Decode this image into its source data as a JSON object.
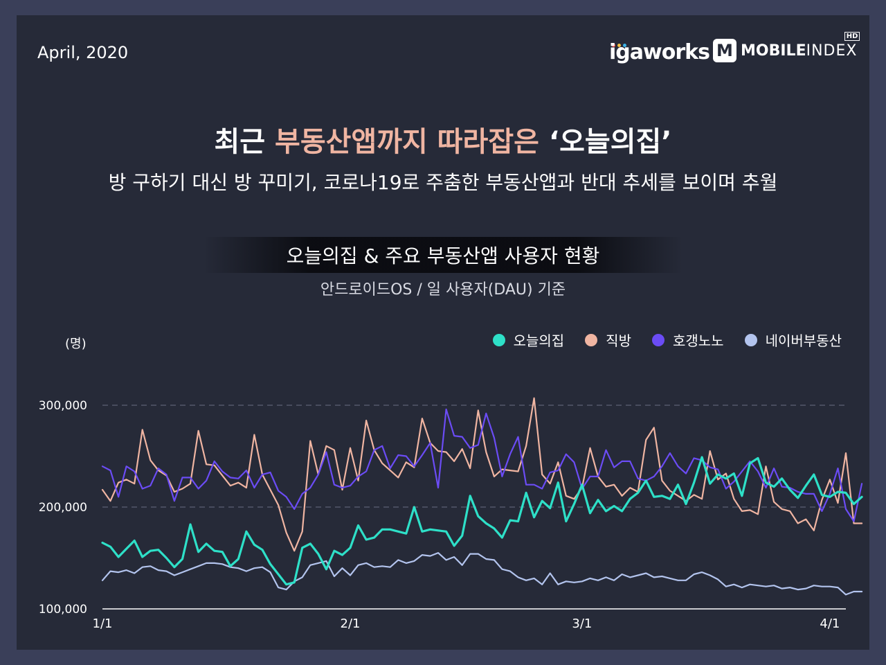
{
  "header": {
    "date": "April, 2020",
    "logo_igaworks": "igaworks",
    "logo_mobile_bold": "MOBILE",
    "logo_mobile_light": "INDEX",
    "logo_hd": "HD",
    "logo_m": "M"
  },
  "headline": {
    "part1": "최근 ",
    "highlight": "부동산앱까지 따라잡은",
    "part2": " ‘오늘의집’",
    "subtitle": "방 구하기 대신 방 꾸미기, 코로나19로 주춤한 부동산앱과 반대 추세를 보이며 추월"
  },
  "colors": {
    "background": "#262a38",
    "highlight": "#f0b5a2",
    "ohouse": "#2ee0c8",
    "zigbang": "#f0b5a2",
    "hogangnono": "#6b4cf5",
    "naver": "#b3c4ee"
  },
  "chart_data": {
    "type": "line",
    "title": "오늘의집 & 주요 부동산앱 사용자 현황",
    "subtitle": "안드로이드OS / 일 사용자(DAU) 기준",
    "ylabel": "(명)",
    "xlabel": "",
    "ylim": [
      100000,
      300000
    ],
    "yticks": [
      "100,000",
      "200,000",
      "300,000"
    ],
    "ytick_values": [
      100000,
      200000,
      300000
    ],
    "xticks": [
      "1/1",
      "2/1",
      "3/1",
      "4/1"
    ],
    "xtick_days": [
      1,
      32,
      61,
      92
    ],
    "x_start": "2020-01-01",
    "x_end": "2020-04-03",
    "grid": "horizontal dashed at 200,000 and 300,000",
    "legend": "top-right",
    "series": [
      {
        "name": "오늘의집",
        "color": "#2ee0c8",
        "values": [
          165000,
          161000,
          151000,
          159000,
          167000,
          151000,
          157000,
          158000,
          150000,
          141000,
          149000,
          183000,
          156000,
          164000,
          157000,
          156000,
          142000,
          149000,
          176000,
          163000,
          158000,
          144000,
          134000,
          124000,
          126000,
          160000,
          164000,
          154000,
          139000,
          157000,
          153000,
          160000,
          182000,
          168000,
          170000,
          178000,
          178000,
          176000,
          174000,
          200000,
          176000,
          178000,
          177000,
          176000,
          162000,
          172000,
          211000,
          191000,
          184000,
          179000,
          170000,
          187000,
          186000,
          214000,
          190000,
          206000,
          199000,
          224000,
          186000,
          203000,
          222000,
          194000,
          207000,
          196000,
          201000,
          196000,
          208000,
          214000,
          226000,
          210000,
          211000,
          208000,
          222000,
          203000,
          224000,
          249000,
          223000,
          232000,
          228000,
          233000,
          211000,
          243000,
          248000,
          224000,
          220000,
          228000,
          217000,
          209000,
          221000,
          232000,
          212000,
          210000,
          215000,
          214000,
          203000,
          210000
        ]
      },
      {
        "name": "직방",
        "color": "#f0b5a2",
        "values": [
          217000,
          206000,
          224000,
          227000,
          223000,
          276000,
          246000,
          236000,
          231000,
          215000,
          218000,
          223000,
          275000,
          242000,
          241000,
          231000,
          221000,
          224000,
          219000,
          271000,
          232000,
          217000,
          202000,
          175000,
          157000,
          176000,
          265000,
          232000,
          260000,
          256000,
          217000,
          258000,
          226000,
          285000,
          256000,
          243000,
          236000,
          229000,
          244000,
          239000,
          287000,
          263000,
          255000,
          254000,
          245000,
          257000,
          238000,
          295000,
          254000,
          230000,
          237000,
          236000,
          235000,
          260000,
          307000,
          232000,
          223000,
          244000,
          211000,
          208000,
          219000,
          258000,
          230000,
          220000,
          222000,
          211000,
          219000,
          215000,
          266000,
          278000,
          226000,
          216000,
          211000,
          206000,
          212000,
          208000,
          255000,
          227000,
          233000,
          208000,
          196000,
          197000,
          193000,
          240000,
          205000,
          198000,
          196000,
          184000,
          188000,
          177000,
          207000,
          227000,
          204000,
          253000,
          184000,
          184000
        ]
      },
      {
        "name": "호갱노노",
        "color": "#6b4cf5",
        "values": [
          240000,
          236000,
          210000,
          240000,
          235000,
          218000,
          221000,
          238000,
          232000,
          206000,
          229000,
          229000,
          218000,
          226000,
          245000,
          235000,
          229000,
          228000,
          236000,
          219000,
          232000,
          234000,
          216000,
          210000,
          198000,
          213000,
          219000,
          232000,
          254000,
          222000,
          219000,
          221000,
          230000,
          235000,
          256000,
          260000,
          238000,
          251000,
          250000,
          240000,
          251000,
          263000,
          219000,
          296000,
          270000,
          269000,
          258000,
          261000,
          292000,
          268000,
          230000,
          252000,
          269000,
          222000,
          222000,
          218000,
          234000,
          236000,
          252000,
          244000,
          218000,
          230000,
          230000,
          256000,
          239000,
          245000,
          245000,
          228000,
          226000,
          230000,
          240000,
          253000,
          240000,
          233000,
          248000,
          246000,
          239000,
          237000,
          218000,
          225000,
          235000,
          245000,
          235000,
          219000,
          238000,
          220000,
          219000,
          215000,
          213000,
          213000,
          196000,
          213000,
          238000,
          198000,
          186000,
          223000
        ]
      },
      {
        "name": "네이버부동산",
        "color": "#b3c4ee",
        "values": [
          128000,
          137000,
          136000,
          138000,
          135000,
          141000,
          142000,
          138000,
          137000,
          133000,
          136000,
          139000,
          142000,
          145000,
          145000,
          144000,
          141000,
          140000,
          137000,
          140000,
          141000,
          136000,
          121000,
          119000,
          127000,
          131000,
          143000,
          145000,
          147000,
          132000,
          140000,
          133000,
          143000,
          145000,
          141000,
          142000,
          141000,
          148000,
          145000,
          147000,
          153000,
          152000,
          155000,
          148000,
          151000,
          143000,
          154000,
          154000,
          149000,
          148000,
          139000,
          137000,
          131000,
          128000,
          130000,
          124000,
          135000,
          124000,
          127000,
          126000,
          127000,
          130000,
          128000,
          131000,
          128000,
          134000,
          131000,
          133000,
          135000,
          131000,
          132000,
          130000,
          128000,
          128000,
          134000,
          136000,
          133000,
          129000,
          122000,
          124000,
          121000,
          124000,
          123000,
          122000,
          123000,
          120000,
          121000,
          119000,
          120000,
          123000,
          122000,
          122000,
          121000,
          114000,
          117000,
          117000
        ]
      }
    ]
  }
}
